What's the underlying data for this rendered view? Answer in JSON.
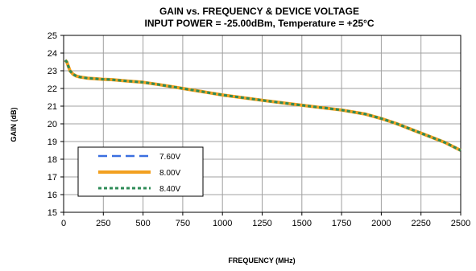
{
  "chart_data": {
    "type": "line",
    "title": "GAIN vs. FREQUENCY & DEVICE VOLTAGE",
    "subtitle": "INPUT POWER = -25.00dBm, Temperature = +25°C",
    "xlabel": "FREQUENCY (MHz)",
    "ylabel": "GAIN (dB)",
    "xlim": [
      0,
      2500
    ],
    "ylim": [
      15,
      25
    ],
    "xticks": [
      0,
      250,
      500,
      750,
      1000,
      1250,
      1500,
      1750,
      2000,
      2250,
      2500
    ],
    "yticks": [
      15,
      16,
      17,
      18,
      19,
      20,
      21,
      22,
      23,
      24,
      25
    ],
    "grid": true,
    "legend_position": "bottom-left",
    "series": [
      {
        "name": "7.60V",
        "color": "#3a6fe0",
        "line_style": "long-dash",
        "x": [
          10,
          20,
          40,
          60,
          80,
          100,
          150,
          200,
          250,
          300,
          400,
          500,
          600,
          750,
          900,
          1000,
          1250,
          1500,
          1750,
          1900,
          2000,
          2100,
          2200,
          2300,
          2400,
          2500
        ],
        "y": [
          23.6,
          23.5,
          23.0,
          22.8,
          22.7,
          22.65,
          22.58,
          22.55,
          22.52,
          22.5,
          22.42,
          22.35,
          22.22,
          22.0,
          21.78,
          21.63,
          21.33,
          21.05,
          20.78,
          20.55,
          20.3,
          20.0,
          19.65,
          19.3,
          18.95,
          18.5
        ]
      },
      {
        "name": "8.00V",
        "color": "#f2a020",
        "line_style": "solid",
        "x": [
          10,
          20,
          40,
          60,
          80,
          100,
          150,
          200,
          250,
          300,
          400,
          500,
          600,
          750,
          900,
          1000,
          1250,
          1500,
          1750,
          1900,
          2000,
          2100,
          2200,
          2300,
          2400,
          2500
        ],
        "y": [
          23.6,
          23.5,
          23.0,
          22.8,
          22.7,
          22.65,
          22.58,
          22.55,
          22.52,
          22.5,
          22.42,
          22.35,
          22.22,
          22.0,
          21.78,
          21.63,
          21.33,
          21.05,
          20.78,
          20.55,
          20.3,
          20.0,
          19.65,
          19.3,
          18.95,
          18.5
        ]
      },
      {
        "name": "8.40V",
        "color": "#2e8b57",
        "line_style": "short-dash",
        "x": [
          10,
          20,
          40,
          60,
          80,
          100,
          150,
          200,
          250,
          300,
          400,
          500,
          600,
          750,
          900,
          1000,
          1250,
          1500,
          1750,
          1900,
          2000,
          2100,
          2200,
          2300,
          2400,
          2500
        ],
        "y": [
          23.6,
          23.5,
          23.0,
          22.8,
          22.7,
          22.65,
          22.58,
          22.55,
          22.52,
          22.5,
          22.42,
          22.35,
          22.22,
          22.0,
          21.78,
          21.63,
          21.33,
          21.05,
          20.78,
          20.55,
          20.3,
          20.0,
          19.65,
          19.3,
          18.95,
          18.5
        ]
      }
    ]
  }
}
